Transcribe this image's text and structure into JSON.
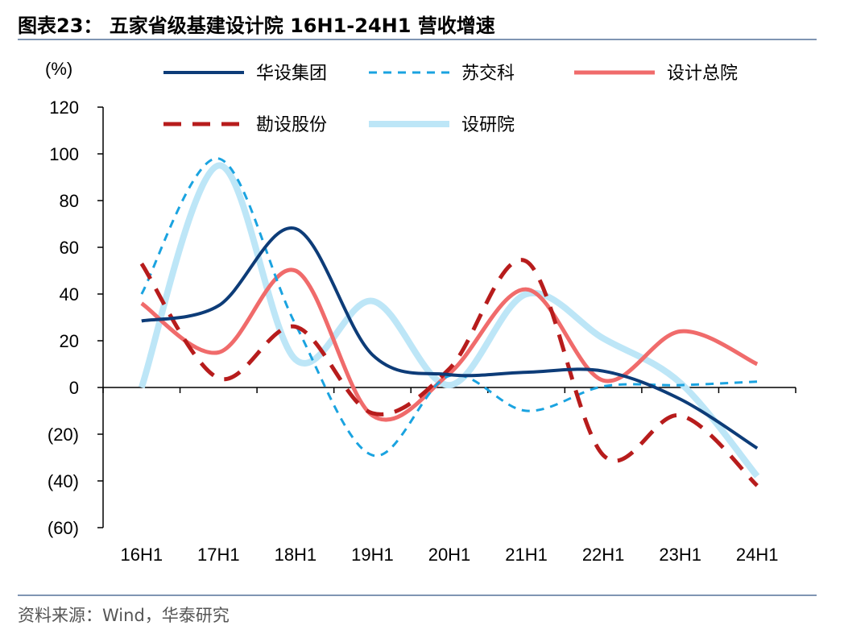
{
  "title": "图表23： 五家省级基建设计院 16H1-24H1 营收增速",
  "source": "资料来源：Wind，华泰研究",
  "chart_data": {
    "type": "line",
    "ylabel": "(%)",
    "ylim": [
      -60,
      120
    ],
    "yticks": [
      120,
      100,
      80,
      60,
      40,
      20,
      0,
      -20,
      -40,
      -60
    ],
    "ytick_labels": [
      "120",
      "100",
      "80",
      "60",
      "40",
      "20",
      "0",
      "(20)",
      "(40)",
      "(60)"
    ],
    "categories": [
      "16H1",
      "17H1",
      "18H1",
      "19H1",
      "20H1",
      "21H1",
      "22H1",
      "23H1",
      "24H1"
    ],
    "legend_position": "top",
    "series": [
      {
        "name": "华设集团",
        "color": "#0d3c78",
        "dash": "solid",
        "width": 4,
        "values": [
          28.5,
          35,
          68,
          14,
          5.5,
          6.5,
          7,
          -5,
          -26
        ]
      },
      {
        "name": "苏交科",
        "color": "#1aa3e0",
        "dash": "dashed",
        "width": 3,
        "values": [
          40,
          98,
          27,
          -29,
          5,
          -10,
          0.5,
          1,
          2.5
        ]
      },
      {
        "name": "设计总院",
        "color": "#f06b6b",
        "dash": "solid",
        "width": 5,
        "values": [
          36,
          15,
          50,
          -12,
          6,
          42,
          3,
          24,
          10
        ]
      },
      {
        "name": "勘设股份",
        "color": "#b71c1c",
        "dash": "dashed-thick",
        "width": 5,
        "values": [
          53,
          4,
          26,
          -11,
          8,
          54,
          -29,
          -12,
          -42
        ]
      },
      {
        "name": "设研院",
        "color": "#bde6f7",
        "dash": "solid",
        "width": 8,
        "values": [
          0,
          95,
          12,
          37,
          1,
          40,
          21,
          2,
          -38
        ]
      }
    ]
  }
}
